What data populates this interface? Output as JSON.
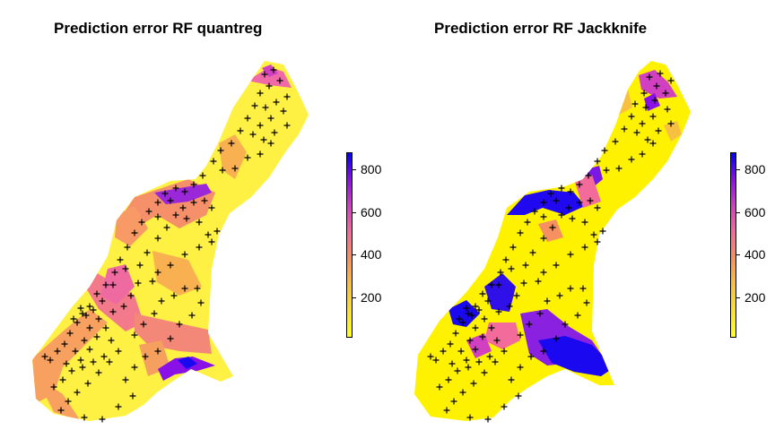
{
  "maps": [
    {
      "title": "Prediction error RF quantreg",
      "legend": {
        "labels": [
          "800",
          "600",
          "400",
          "200"
        ],
        "max": 880
      },
      "palette": [
        "#0000ff",
        "#8a10e8",
        "#d040c0",
        "#f26b9a",
        "#f79060",
        "#f8c040",
        "#fae030",
        "#ffff20"
      ]
    },
    {
      "title": "Prediction error RF Jackknife",
      "legend": {
        "labels": [
          "800",
          "600",
          "400",
          "200"
        ],
        "max": 880
      },
      "palette": [
        "#0000ff",
        "#8a10e8",
        "#d040c0",
        "#f26b9a",
        "#f79060",
        "#f8c040",
        "#fae030",
        "#ffff20"
      ]
    }
  ]
}
